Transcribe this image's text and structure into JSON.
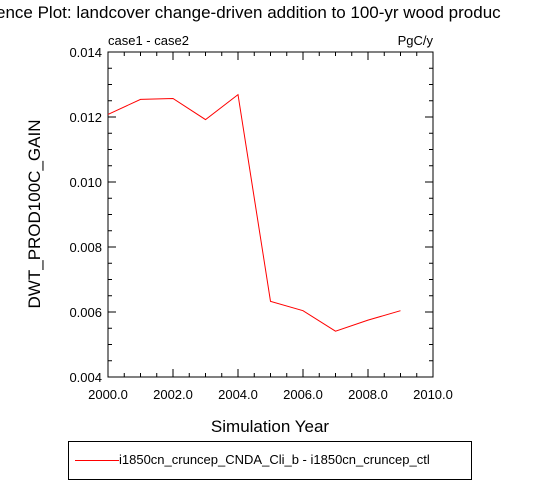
{
  "chart_data": {
    "type": "line",
    "title": "ence Plot: landcover change-driven addition to 100-yr wood produc",
    "left_label": "case1 - case2",
    "right_label": "PgC/y",
    "xlabel": "Simulation Year",
    "ylabel": "DWT_PROD100C_GAIN",
    "xlim": [
      2000.0,
      2010.0
    ],
    "ylim": [
      0.004,
      0.014
    ],
    "x_ticks": [
      "2000.0",
      "2002.0",
      "2004.0",
      "2006.0",
      "2008.0",
      "2010.0"
    ],
    "y_ticks": [
      "0.004",
      "0.006",
      "0.008",
      "0.010",
      "0.012",
      "0.014"
    ],
    "grid": false,
    "legend_placement": "bottom",
    "series": [
      {
        "name": "i1850cn_cruncep_CNDA_Cli_b - i1850cn_cruncep_ctl",
        "color": "#ff0000",
        "x": [
          2000,
          2001,
          2002,
          2003,
          2004,
          2005,
          2006,
          2007,
          2008,
          2009
        ],
        "values": [
          0.01208,
          0.01254,
          0.01257,
          0.01192,
          0.01269,
          0.00633,
          0.00604,
          0.00541,
          0.00575,
          0.00604
        ]
      }
    ]
  }
}
